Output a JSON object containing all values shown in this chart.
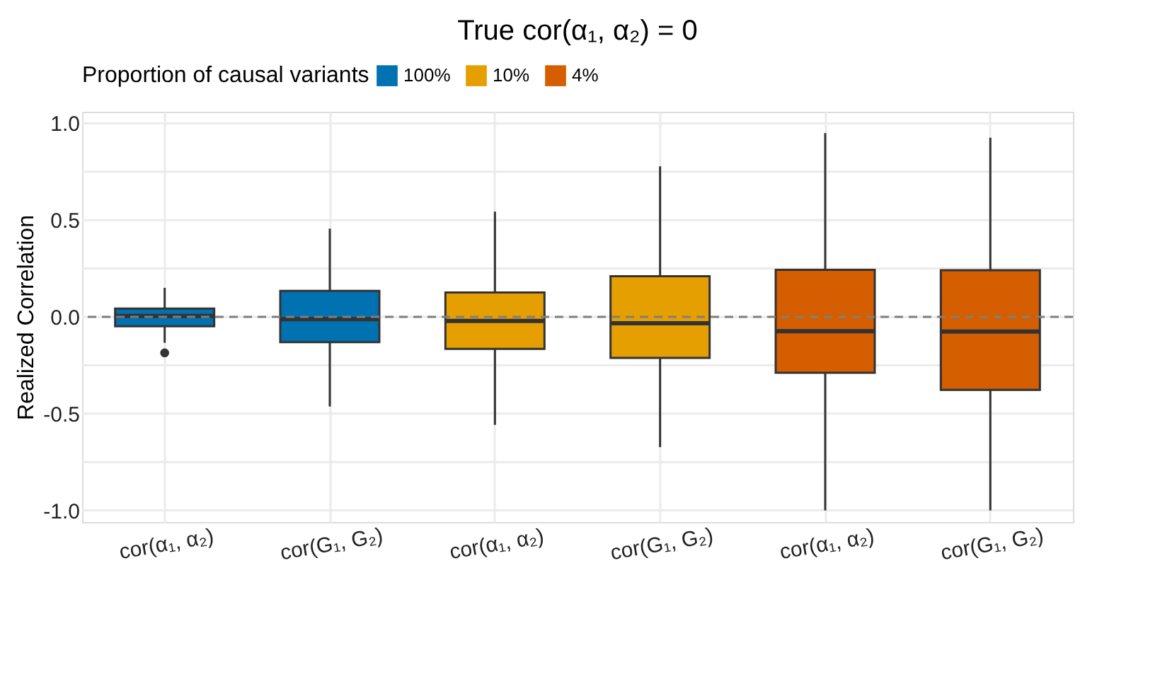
{
  "chart_data": {
    "type": "box",
    "title": "True cor(α₁, α₂) = 0",
    "ylabel": "Realized Correlation",
    "legend_title": "Proportion of causal variants",
    "categories": [
      "cor(α₁, α₂)",
      "cor(G₁, G₂)",
      "cor(α₁, α₂)",
      "cor(G₁, G₂)",
      "cor(α₁, α₂)",
      "cor(G₁, G₂)"
    ],
    "ylim": [
      -1.06,
      1.06
    ],
    "yticks": [
      {
        "value": -1,
        "label": "-1.0"
      },
      {
        "value": -0.75,
        "label": null
      },
      {
        "value": -0.5,
        "label": "-0.5"
      },
      {
        "value": -0.25,
        "label": null
      },
      {
        "value": 0,
        "label": "0.0"
      },
      {
        "value": 0.25,
        "label": null
      },
      {
        "value": 0.5,
        "label": "0.5"
      },
      {
        "value": 0.75,
        "label": null
      },
      {
        "value": 1,
        "label": "1.0"
      }
    ],
    "grid": true,
    "legend": "top",
    "ref_lines": [
      {
        "axis": "y",
        "value": 0,
        "color": "#7f7f7f",
        "line_style": "dashed"
      }
    ],
    "series": [
      {
        "name": "100%",
        "color": "#0072b2",
        "boxes": [
          {
            "low": -0.134,
            "q1": -0.048,
            "median": 0.005,
            "q3": 0.043,
            "high": 0.15,
            "outliers": [
              -0.186
            ]
          },
          {
            "low": -0.463,
            "q1": -0.131,
            "median": -0.012,
            "q3": 0.134,
            "high": 0.456
          },
          null,
          null,
          null,
          null
        ]
      },
      {
        "name": "10%",
        "color": "#e69f00",
        "boxes": [
          null,
          null,
          {
            "low": -0.558,
            "q1": -0.165,
            "median": -0.021,
            "q3": 0.126,
            "high": 0.544
          },
          {
            "low": -0.673,
            "q1": -0.212,
            "median": -0.033,
            "q3": 0.21,
            "high": 0.778
          },
          null,
          null
        ]
      },
      {
        "name": "4%",
        "color": "#d55e00",
        "boxes": [
          null,
          null,
          null,
          null,
          {
            "low": -1.0,
            "q1": -0.289,
            "median": -0.074,
            "q3": 0.243,
            "high": 0.95
          },
          {
            "low": -1.0,
            "q1": -0.377,
            "median": -0.076,
            "q3": 0.241,
            "high": 0.926
          }
        ]
      }
    ]
  }
}
